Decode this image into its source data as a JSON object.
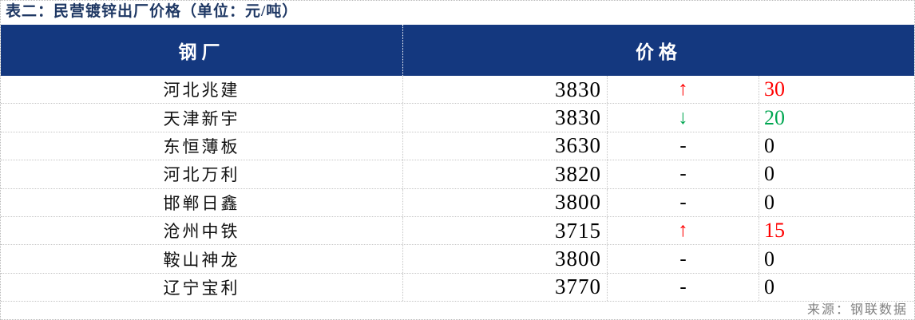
{
  "title": "表二：民营镀锌出厂价格（单位：元/吨）",
  "header": {
    "mill": "钢厂",
    "price": "价格"
  },
  "rows": [
    {
      "mill": "河北兆建",
      "price": "3830",
      "arrow": "↑",
      "direction": "up",
      "change": "30"
    },
    {
      "mill": "天津新宇",
      "price": "3830",
      "arrow": "↓",
      "direction": "down",
      "change": "20"
    },
    {
      "mill": "东恒薄板",
      "price": "3630",
      "arrow": "-",
      "direction": "flat",
      "change": "0"
    },
    {
      "mill": "河北万利",
      "price": "3820",
      "arrow": "-",
      "direction": "flat",
      "change": "0"
    },
    {
      "mill": "邯郸日鑫",
      "price": "3800",
      "arrow": "-",
      "direction": "flat",
      "change": "0"
    },
    {
      "mill": "沧州中铁",
      "price": "3715",
      "arrow": "↑",
      "direction": "up",
      "change": "15"
    },
    {
      "mill": "鞍山神龙",
      "price": "3800",
      "arrow": "-",
      "direction": "flat",
      "change": "0"
    },
    {
      "mill": "辽宁宝利",
      "price": "3770",
      "arrow": "-",
      "direction": "flat",
      "change": "0"
    }
  ],
  "source": "来源：钢联数据",
  "colors": {
    "header_bg": "#14387F",
    "title": "#1F3864",
    "up": "#FF0000",
    "down": "#00A651",
    "flat": "#000000",
    "source": "#808080"
  }
}
